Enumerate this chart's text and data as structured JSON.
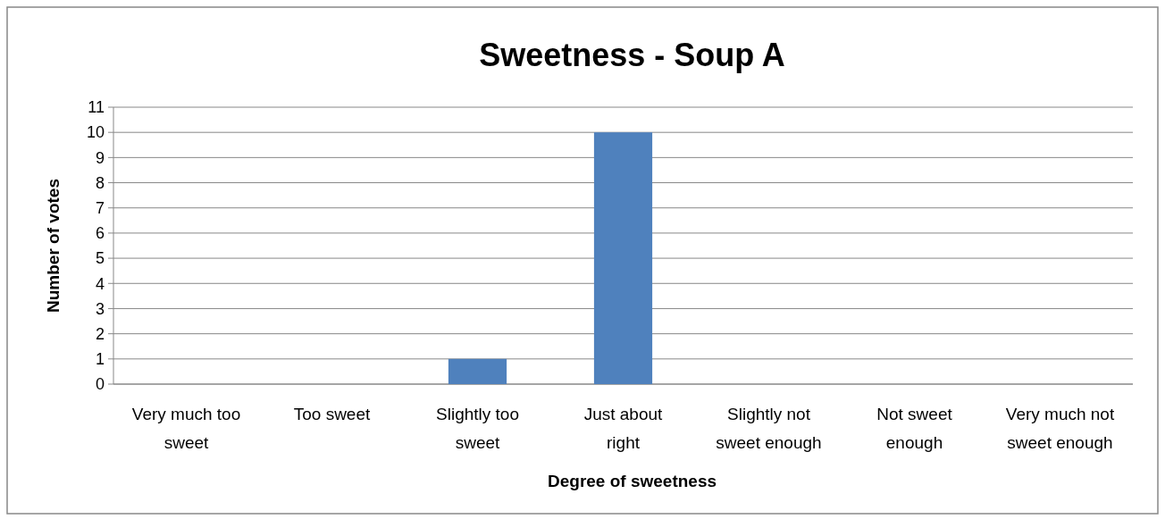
{
  "chart_data": {
    "type": "bar",
    "title": "Sweetness - Soup A",
    "xlabel": "Degree of sweetness",
    "ylabel": "Number of votes",
    "categories": [
      "Very much too sweet",
      "Too sweet",
      "Slightly too sweet",
      "Just about right",
      "Slightly not sweet enough",
      "Not sweet enough",
      "Very much not sweet enough"
    ],
    "values": [
      0,
      0,
      1,
      10,
      0,
      0,
      0
    ],
    "color": "#4f81bd",
    "ylim": [
      0,
      11
    ],
    "yticks": [
      0,
      1,
      2,
      3,
      4,
      5,
      6,
      7,
      8,
      9,
      10,
      11
    ],
    "grid": "y"
  }
}
